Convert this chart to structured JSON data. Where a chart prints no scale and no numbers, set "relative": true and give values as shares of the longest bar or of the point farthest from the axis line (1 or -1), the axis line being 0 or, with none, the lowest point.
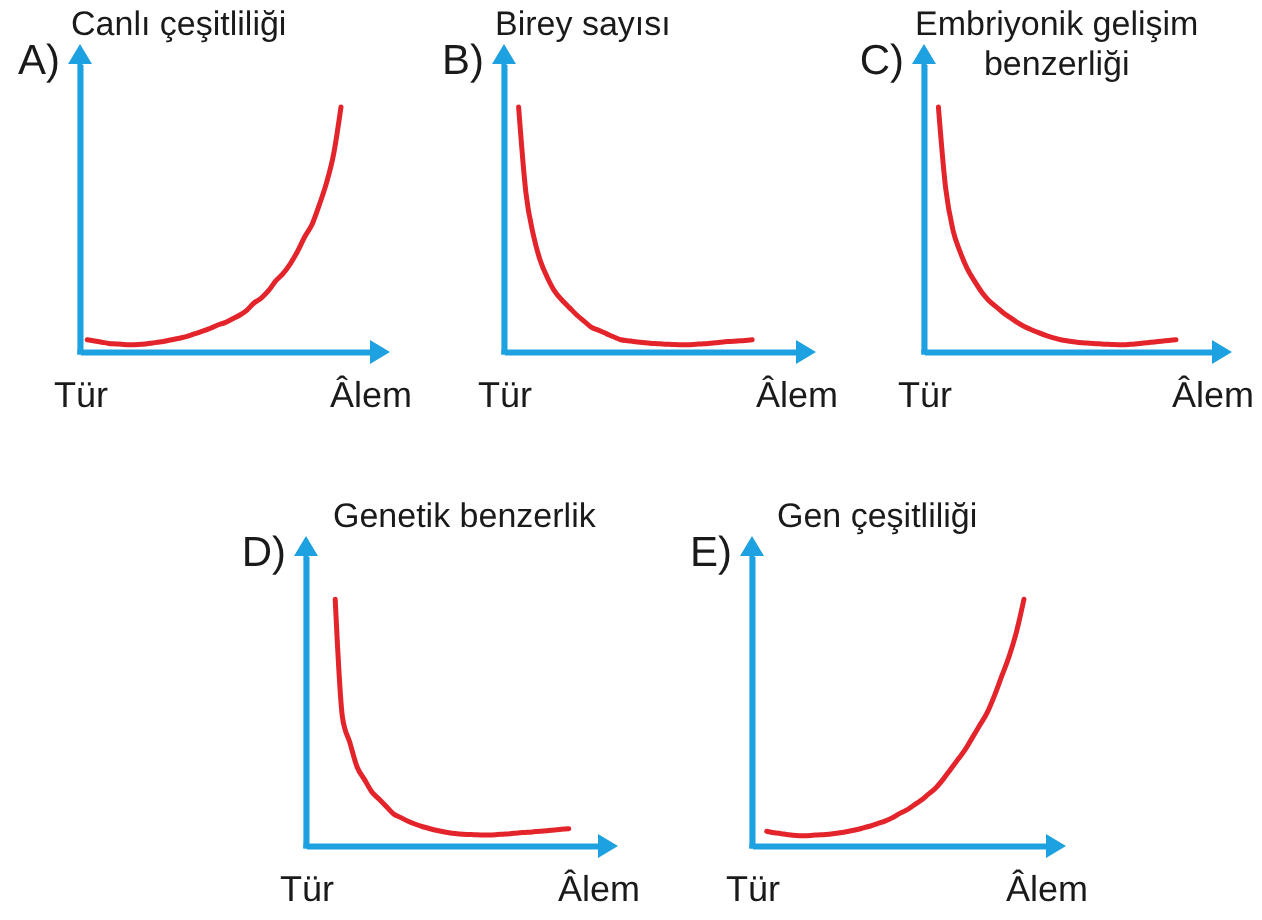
{
  "chart_data": [
    {
      "type": "line",
      "title": "A)",
      "ylabel": "Canlı çeşitliliği",
      "relative": true,
      "color": "#e3242b",
      "categories": [
        "Tür",
        null,
        null,
        null,
        null,
        null,
        null,
        null,
        null,
        null,
        null,
        null,
        null,
        null,
        null,
        null,
        null,
        null,
        null,
        null,
        null,
        null,
        null,
        null,
        null,
        null,
        null,
        null,
        null,
        null,
        null,
        null,
        null,
        null,
        null,
        null,
        null,
        null,
        null,
        null,
        "Âlem"
      ],
      "values": [
        null,
        0.05,
        0.045,
        0.04,
        0.035,
        0.033,
        0.031,
        0.03,
        0.031,
        0.033,
        0.037,
        0.041,
        0.046,
        0.052,
        0.058,
        0.066,
        0.076,
        0.086,
        0.097,
        0.11,
        0.12,
        0.135,
        0.15,
        0.17,
        0.2,
        0.22,
        0.25,
        0.29,
        0.32,
        0.36,
        0.41,
        0.47,
        0.52,
        0.6,
        0.69,
        0.81,
        1,
        null,
        null,
        null,
        null
      ]
    },
    {
      "type": "line",
      "title": "B)",
      "ylabel": "Birey sayısı",
      "relative": true,
      "color": "#e3242b",
      "categories": [
        "Tür",
        null,
        null,
        null,
        null,
        null,
        null,
        null,
        null,
        null,
        null,
        null,
        null,
        null,
        null,
        null,
        null,
        null,
        null,
        null,
        null,
        null,
        null,
        null,
        null,
        null,
        null,
        null,
        null,
        null,
        null,
        null,
        null,
        null,
        null,
        null,
        null,
        null,
        null,
        null,
        "Âlem"
      ],
      "values": [
        null,
        null,
        1,
        0.65,
        0.48,
        0.37,
        0.3,
        0.245,
        0.21,
        0.18,
        0.15,
        0.125,
        0.1,
        0.088,
        0.075,
        0.062,
        0.05,
        0.046,
        0.042,
        0.039,
        0.036,
        0.034,
        0.032,
        0.031,
        0.03,
        0.03,
        0.031,
        0.033,
        0.035,
        0.038,
        0.041,
        0.043,
        0.045,
        0.047,
        0.05,
        null,
        null,
        null,
        null,
        null,
        null
      ]
    },
    {
      "type": "line",
      "title": "C)",
      "ylabel": "Embriyonik gelişim benzerliği",
      "relative": true,
      "color": "#e3242b",
      "categories": [
        "Tür",
        null,
        null,
        null,
        null,
        null,
        null,
        null,
        null,
        null,
        null,
        null,
        null,
        null,
        null,
        null,
        null,
        null,
        null,
        null,
        null,
        null,
        null,
        null,
        null,
        null,
        null,
        null,
        null,
        null,
        null,
        null,
        null,
        null,
        null,
        null,
        null,
        null,
        null,
        null,
        "Âlem"
      ],
      "values": [
        null,
        null,
        1,
        0.67,
        0.5,
        0.41,
        0.34,
        0.29,
        0.245,
        0.21,
        0.185,
        0.16,
        0.14,
        0.12,
        0.103,
        0.09,
        0.078,
        0.067,
        0.058,
        0.05,
        0.045,
        0.041,
        0.038,
        0.036,
        0.034,
        0.032,
        0.031,
        0.03,
        0.03,
        0.032,
        0.035,
        0.038,
        0.041,
        0.044,
        0.047,
        0.05,
        null,
        null,
        null,
        null,
        null
      ]
    },
    {
      "type": "line",
      "title": "D)",
      "ylabel": "Genetik benzerlik",
      "relative": true,
      "color": "#e3242b",
      "categories": [
        "Tür",
        null,
        null,
        null,
        null,
        null,
        null,
        null,
        null,
        null,
        null,
        null,
        null,
        null,
        null,
        null,
        null,
        null,
        null,
        null,
        null,
        null,
        null,
        null,
        null,
        null,
        null,
        null,
        null,
        null,
        null,
        null,
        null,
        null,
        null,
        null,
        null,
        null,
        null,
        null,
        "Âlem"
      ],
      "values": [
        null,
        null,
        null,
        null,
        1,
        0.52,
        0.42,
        0.32,
        0.27,
        0.22,
        0.19,
        0.16,
        0.13,
        0.115,
        0.1,
        0.088,
        0.078,
        0.07,
        0.063,
        0.057,
        0.052,
        0.049,
        0.047,
        0.046,
        0.045,
        0.045,
        0.046,
        0.048,
        0.05,
        0.053,
        0.055,
        0.057,
        0.06,
        0.062,
        0.065,
        0.068,
        0.07,
        null,
        null,
        null,
        null
      ]
    },
    {
      "type": "line",
      "title": "E)",
      "ylabel": "Gen çeşitliliği",
      "relative": true,
      "color": "#e3242b",
      "categories": [
        "Tür",
        null,
        null,
        null,
        null,
        null,
        null,
        null,
        null,
        null,
        null,
        null,
        null,
        null,
        null,
        null,
        null,
        null,
        null,
        null,
        null,
        null,
        null,
        null,
        null,
        null,
        null,
        null,
        null,
        null,
        null,
        null,
        null,
        null,
        null,
        null,
        null,
        null,
        null,
        null,
        "Âlem"
      ],
      "values": [
        null,
        null,
        0.06,
        0.054,
        0.05,
        0.046,
        0.043,
        0.042,
        0.043,
        0.045,
        0.047,
        0.05,
        0.054,
        0.059,
        0.065,
        0.072,
        0.08,
        0.09,
        0.1,
        0.113,
        0.13,
        0.145,
        0.165,
        0.185,
        0.21,
        0.235,
        0.27,
        0.31,
        0.35,
        0.39,
        0.44,
        0.49,
        0.54,
        0.61,
        0.69,
        0.77,
        0.87,
        1,
        null,
        null,
        null
      ]
    }
  ]
}
